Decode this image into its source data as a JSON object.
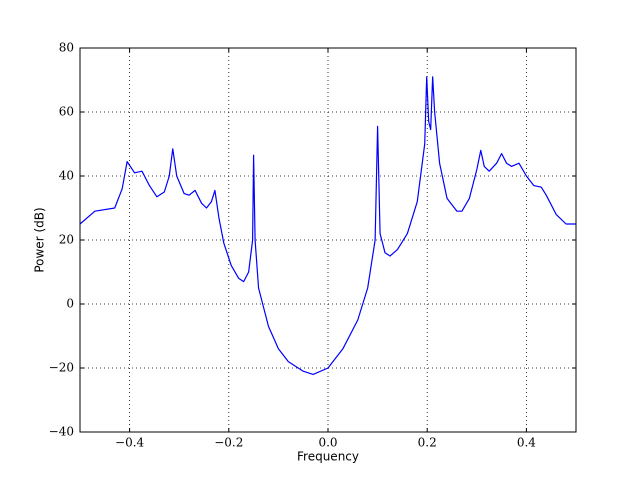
{
  "chart_data": {
    "type": "line",
    "xlabel": "Frequency",
    "ylabel": "Power (dB)",
    "x": [
      -0.5,
      -0.47,
      -0.43,
      -0.415,
      -0.405,
      -0.39,
      -0.375,
      -0.36,
      -0.345,
      -0.33,
      -0.32,
      -0.313,
      -0.305,
      -0.29,
      -0.28,
      -0.268,
      -0.255,
      -0.245,
      -0.235,
      -0.228,
      -0.22,
      -0.21,
      -0.195,
      -0.18,
      -0.17,
      -0.16,
      -0.152,
      -0.15,
      -0.147,
      -0.14,
      -0.12,
      -0.1,
      -0.08,
      -0.05,
      -0.03,
      0.0,
      0.03,
      0.06,
      0.08,
      0.095,
      0.1,
      0.105,
      0.115,
      0.125,
      0.14,
      0.16,
      0.18,
      0.195,
      0.199,
      0.203,
      0.207,
      0.211,
      0.215,
      0.225,
      0.24,
      0.26,
      0.27,
      0.285,
      0.3,
      0.308,
      0.315,
      0.325,
      0.34,
      0.35,
      0.36,
      0.37,
      0.385,
      0.4,
      0.415,
      0.43,
      0.44,
      0.46,
      0.48,
      0.5
    ],
    "values": [
      25,
      29,
      30,
      36,
      44.5,
      41,
      41.5,
      37,
      33.5,
      35,
      40,
      48.5,
      40,
      34.5,
      34,
      35.5,
      31.5,
      30,
      32,
      35.5,
      27,
      19,
      12,
      8,
      7,
      10,
      20,
      46.5,
      20,
      5,
      -7,
      -14,
      -18,
      -21,
      -22,
      -20,
      -14,
      -5,
      5,
      20,
      55.5,
      22,
      16,
      15,
      17,
      22,
      32,
      50,
      71,
      57,
      54.5,
      71,
      60,
      44,
      33,
      29,
      29,
      33,
      42,
      48,
      43,
      41.5,
      44,
      47,
      44,
      43,
      44,
      40,
      37,
      36.5,
      34,
      28,
      25,
      25
    ],
    "color": "#0000ff",
    "xlim": [
      -0.5,
      0.5
    ],
    "xticks": [
      {
        "value": -0.4,
        "label": "−0.4"
      },
      {
        "value": -0.2,
        "label": "−0.2"
      },
      {
        "value": 0.0,
        "label": "0.0"
      },
      {
        "value": 0.2,
        "label": "0.2"
      },
      {
        "value": 0.4,
        "label": "0.4"
      }
    ],
    "ylim": [
      -40,
      80
    ],
    "yticks": [
      {
        "value": -40,
        "label": "−40"
      },
      {
        "value": -20,
        "label": "−20"
      },
      0,
      20,
      40,
      60,
      80
    ],
    "grid": true
  }
}
